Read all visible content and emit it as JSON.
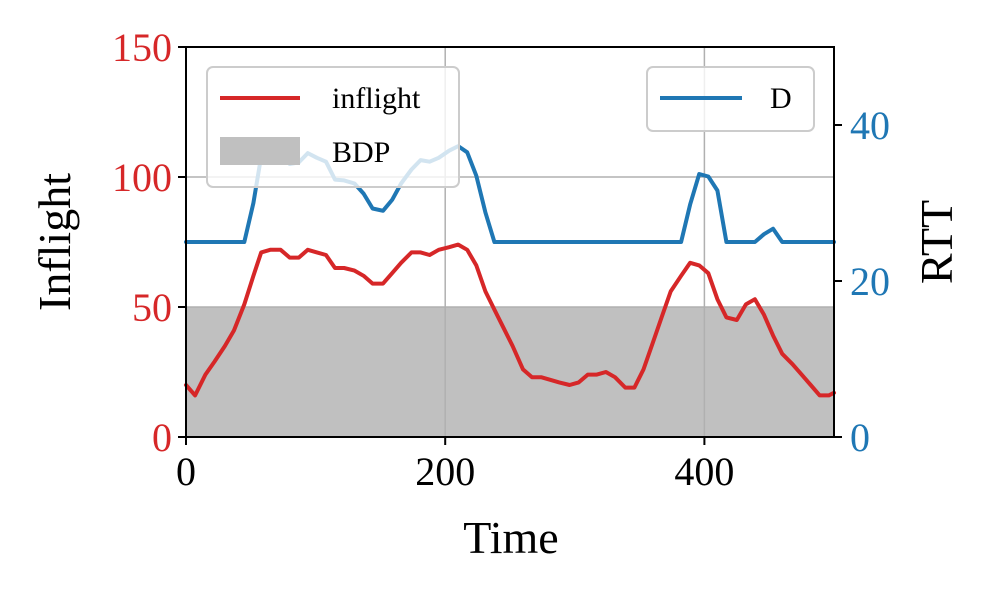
{
  "chart_data": {
    "type": "line",
    "xlabel": "Time",
    "ylabel_left": "Inflight",
    "ylabel_right": "RTT",
    "xlim": [
      0,
      500
    ],
    "ylim_left": [
      0,
      150
    ],
    "ylim_right": [
      0,
      50
    ],
    "x_ticks": [
      "0",
      "200",
      "400"
    ],
    "y_ticks_left": [
      "0",
      "50",
      "100",
      "150"
    ],
    "y_ticks_right": [
      "0",
      "20",
      "40"
    ],
    "grid": true,
    "colors": {
      "inflight": "#d62728",
      "rtt": "#1f77b4",
      "bdp": "#c0c0c0"
    },
    "legend_left": {
      "placement": "top-left",
      "entries": [
        "inflight",
        "BDP"
      ]
    },
    "legend_right": {
      "placement": "top-right",
      "entries": [
        "D"
      ]
    },
    "bdp": {
      "name": "BDP",
      "value": 50
    },
    "series": [
      {
        "name": "inflight",
        "axis": "left",
        "x": [
          0,
          7,
          15,
          22,
          30,
          37,
          45,
          52,
          58,
          65,
          73,
          80,
          87,
          94,
          101,
          108,
          115,
          122,
          130,
          137,
          144,
          152,
          159,
          166,
          174,
          181,
          188,
          195,
          203,
          210,
          217,
          224,
          231,
          238,
          245,
          252,
          260,
          267,
          274,
          281,
          288,
          296,
          303,
          310,
          317,
          324,
          331,
          339,
          346,
          353,
          360,
          367,
          374,
          382,
          389,
          396,
          403,
          410,
          417,
          425,
          432,
          439,
          446,
          453,
          460,
          468,
          475,
          482,
          489,
          496,
          500
        ],
        "values": [
          20,
          16,
          24,
          29,
          35,
          41,
          51,
          62,
          71,
          72,
          72,
          69,
          69,
          72,
          71,
          70,
          65,
          65,
          64,
          62,
          59,
          59,
          63,
          67,
          71,
          71,
          70,
          72,
          73,
          74,
          72,
          66,
          56,
          49,
          42,
          35,
          26,
          23,
          23,
          22,
          21,
          20,
          21,
          24,
          24,
          25,
          23,
          19,
          19,
          26,
          36,
          46,
          56,
          62,
          67,
          66,
          63,
          53,
          46,
          45,
          51,
          53,
          47,
          39,
          32,
          28,
          24,
          20,
          16,
          16,
          17
        ]
      },
      {
        "name": "D",
        "axis": "right",
        "x": [
          0,
          7,
          15,
          22,
          30,
          37,
          45,
          52,
          58,
          65,
          73,
          80,
          87,
          94,
          101,
          108,
          115,
          122,
          130,
          137,
          144,
          152,
          159,
          166,
          174,
          181,
          188,
          195,
          203,
          210,
          217,
          224,
          231,
          238,
          245,
          252,
          260,
          267,
          274,
          281,
          288,
          296,
          303,
          310,
          317,
          324,
          331,
          339,
          346,
          353,
          360,
          367,
          374,
          382,
          389,
          396,
          403,
          410,
          417,
          425,
          432,
          439,
          446,
          453,
          460,
          468,
          475,
          482,
          489,
          496,
          500
        ],
        "values": [
          25,
          25,
          25,
          25,
          25,
          25,
          25,
          30,
          36,
          36.5,
          36.5,
          35,
          35.2,
          36.4,
          35.8,
          35.3,
          33,
          32.9,
          32.5,
          31.2,
          29.3,
          29,
          30.4,
          32.5,
          34.3,
          35.5,
          35.3,
          35.8,
          36.7,
          37.3,
          36.5,
          33.5,
          28.8,
          25,
          25,
          25,
          25,
          25,
          25,
          25,
          25,
          25,
          25,
          25,
          25,
          25,
          25,
          25,
          25,
          25,
          25,
          25,
          25,
          25,
          29.8,
          33.7,
          33.4,
          31.6,
          25,
          25,
          25,
          25,
          26,
          26.7,
          25,
          25,
          25,
          25,
          25,
          25,
          25
        ]
      }
    ]
  }
}
